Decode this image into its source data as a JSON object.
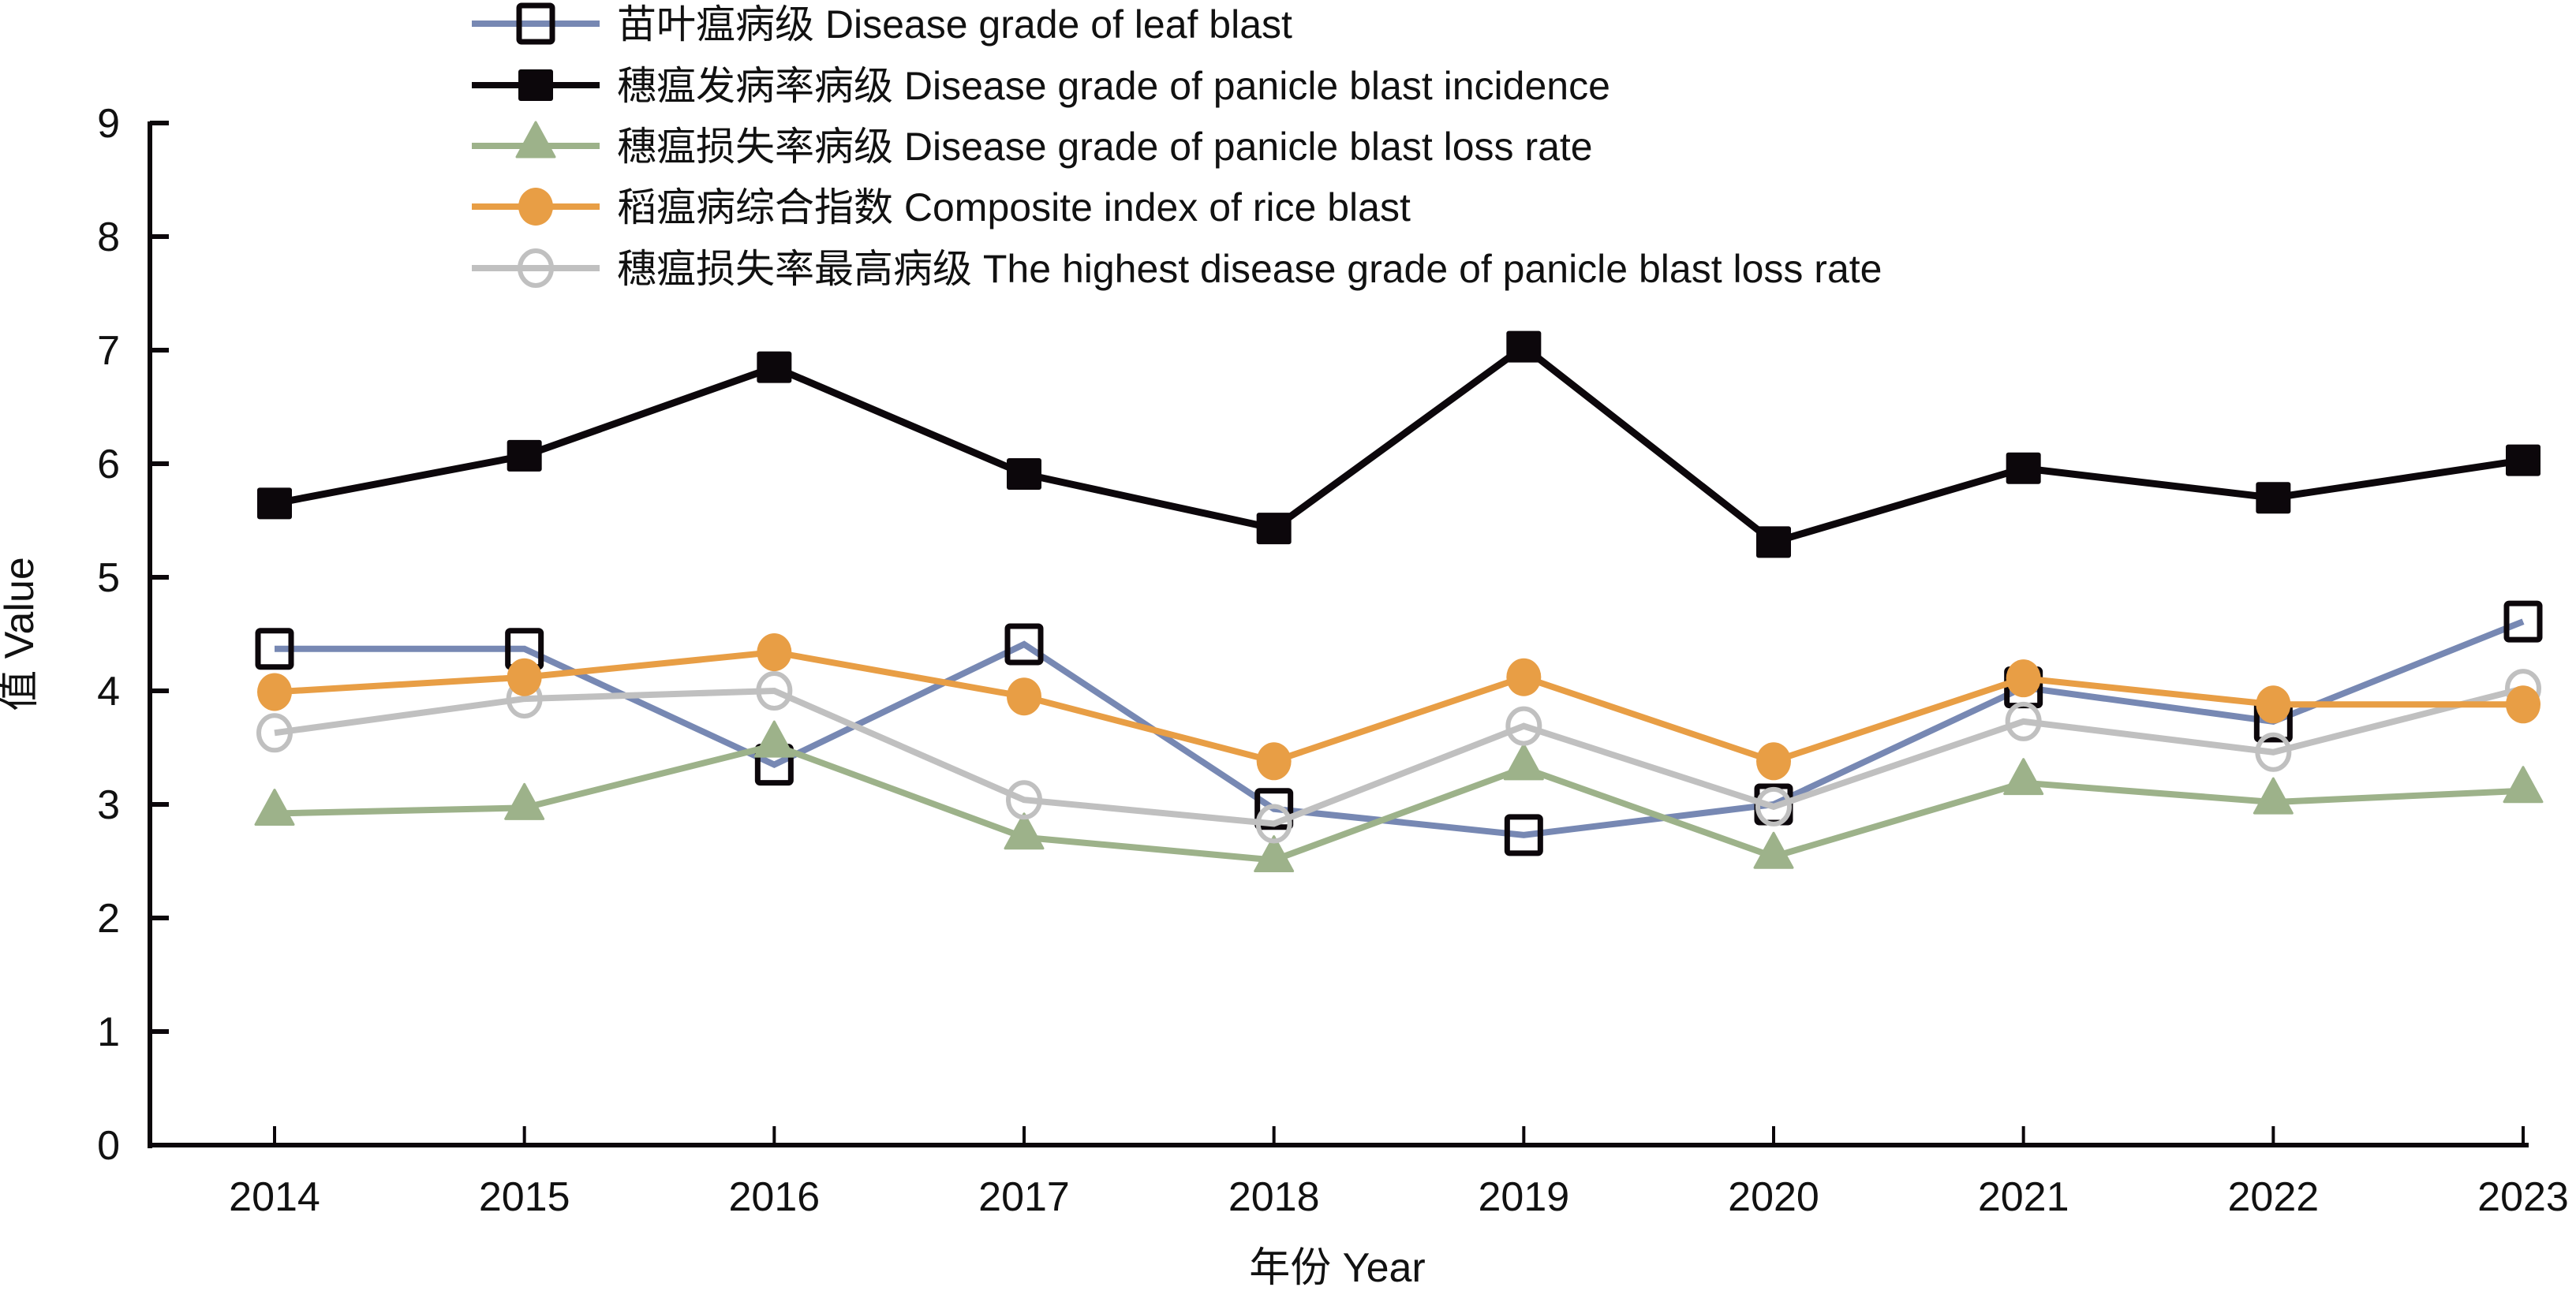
{
  "chart_data": {
    "type": "line",
    "title": "",
    "xlabel": "年份 Year",
    "ylabel": "值 Value",
    "ylim": [
      0,
      9
    ],
    "yticks": [
      0,
      1,
      2,
      3,
      4,
      5,
      6,
      7,
      8,
      9
    ],
    "grid": false,
    "legend_position": "top-center",
    "categories": [
      "2014",
      "2015",
      "2016",
      "2017",
      "2018",
      "2019",
      "2020",
      "2021",
      "2022",
      "2023"
    ],
    "series": [
      {
        "name": "苗叶瘟病级 Disease grade of leaf blast",
        "color": "#7788b3",
        "marker": "square-open",
        "values": [
          4.37,
          4.37,
          3.35,
          4.41,
          2.96,
          2.73,
          3.0,
          4.03,
          3.73,
          4.61
        ]
      },
      {
        "name": "穗瘟发病率病级 Disease grade of panicle blast incidence",
        "color": "#0c070b",
        "marker": "square-filled",
        "values": [
          5.65,
          6.07,
          6.85,
          5.91,
          5.43,
          7.03,
          5.31,
          5.96,
          5.7,
          6.03
        ]
      },
      {
        "name": "穗瘟损失率病级 Disease grade of panicle blast loss rate",
        "color": "#9db28a",
        "marker": "triangle-filled",
        "values": [
          2.92,
          2.97,
          3.52,
          2.71,
          2.51,
          3.32,
          2.54,
          3.19,
          3.02,
          3.12
        ]
      },
      {
        "name": "稻瘟病综合指数 Composite index of rice blast",
        "color": "#e89e45",
        "marker": "circle-filled",
        "values": [
          3.99,
          4.12,
          4.34,
          3.95,
          3.38,
          4.12,
          3.38,
          4.11,
          3.88,
          3.88
        ]
      },
      {
        "name": "穗瘟损失率最高病级 The highest disease grade of panicle blast loss rate",
        "color": "#c0c0c0",
        "marker": "circle-open",
        "values": [
          3.63,
          3.93,
          4.0,
          3.04,
          2.83,
          3.69,
          2.98,
          3.73,
          3.46,
          4.02
        ]
      }
    ]
  }
}
